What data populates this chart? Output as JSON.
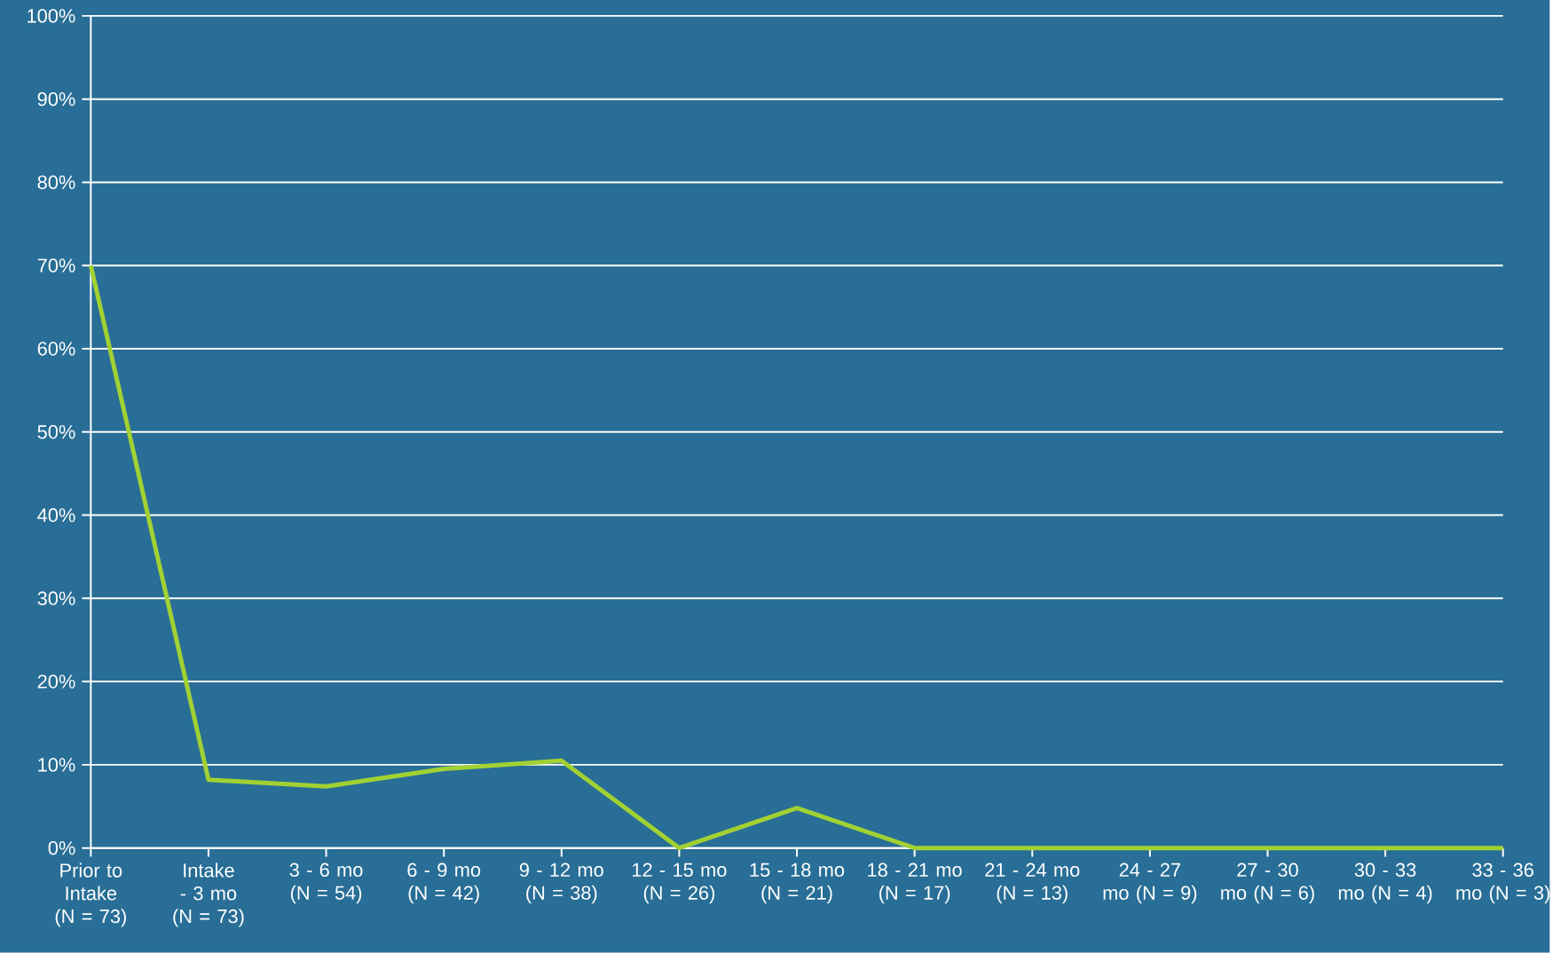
{
  "chart_data": {
    "type": "line",
    "categories": [
      "Prior to Intake (N = 73)",
      "Intake - 3 mo (N = 73)",
      "3 - 6 mo (N = 54)",
      "6 - 9 mo (N = 42)",
      "9 - 12 mo (N = 38)",
      "12 - 15 mo (N = 26)",
      "15 - 18 mo (N = 21)",
      "18 - 21 mo (N = 17)",
      "21 - 24 mo (N = 13)",
      "24 - 27 mo (N = 9)",
      "27 - 30 mo (N = 6)",
      "30 - 33 mo (N = 4)",
      "33 - 36 mo (N = 3)"
    ],
    "values": [
      70,
      8.2,
      7.4,
      9.5,
      10.5,
      0,
      4.8,
      0,
      0,
      0,
      0,
      0,
      0
    ],
    "color": "#a2d133",
    "ylim": [
      0,
      100
    ],
    "yticks": [
      {
        "value": 0,
        "label": "0%"
      },
      {
        "value": 10,
        "label": "10%"
      },
      {
        "value": 20,
        "label": "20%"
      },
      {
        "value": 30,
        "label": "30%"
      },
      {
        "value": 40,
        "label": "40%"
      },
      {
        "value": 50,
        "label": "50%"
      },
      {
        "value": 60,
        "label": "60%"
      },
      {
        "value": 70,
        "label": "70%"
      },
      {
        "value": 80,
        "label": "80%"
      },
      {
        "value": 90,
        "label": "90%"
      },
      {
        "value": 100,
        "label": "100%"
      }
    ],
    "grid": "y",
    "marker": "none",
    "line_style": "solid"
  }
}
